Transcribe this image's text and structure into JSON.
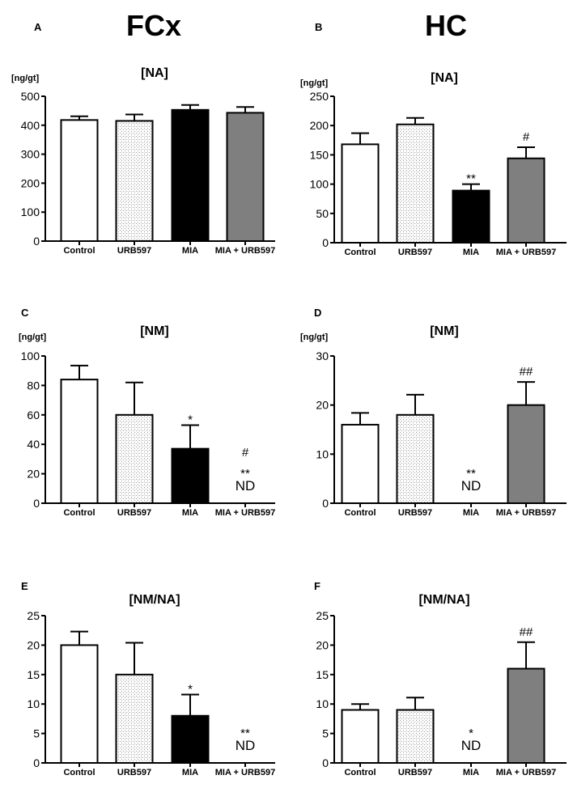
{
  "figure": {
    "col_headers": [
      "FCx",
      "HC"
    ]
  },
  "chart_data": [
    {
      "panel": "A",
      "type": "bar",
      "title": "[NA]",
      "ylabel": "[ng/gt]",
      "ylim": [
        0,
        500
      ],
      "ticks": [
        0,
        100,
        200,
        300,
        400,
        500
      ],
      "categories": [
        "Control",
        "URB597",
        "MIA",
        "MIA + URB597"
      ],
      "values": [
        418,
        415,
        453,
        443
      ],
      "errors": [
        13,
        22,
        17,
        20
      ],
      "annotations": [
        "",
        "",
        "",
        ""
      ],
      "nd": [
        false,
        false,
        false,
        false
      ]
    },
    {
      "panel": "B",
      "type": "bar",
      "title": "[NA]",
      "ylabel": "[ng/gt]",
      "ylim": [
        0,
        250
      ],
      "ticks": [
        0,
        50,
        100,
        150,
        200,
        250
      ],
      "categories": [
        "Control",
        "URB597",
        "MIA",
        "MIA + URB597"
      ],
      "values": [
        168,
        202,
        89,
        144
      ],
      "errors": [
        19,
        11,
        11,
        19
      ],
      "annotations": [
        "",
        "",
        "**",
        "#"
      ],
      "nd": [
        false,
        false,
        false,
        false
      ]
    },
    {
      "panel": "C",
      "type": "bar",
      "title": "[NM]",
      "ylabel": "[ng/gt]",
      "ylim": [
        0,
        100
      ],
      "ticks": [
        0,
        20,
        40,
        60,
        80,
        100
      ],
      "categories": [
        "Control",
        "URB597",
        "MIA",
        "MIA + URB597"
      ],
      "values": [
        84,
        60,
        37,
        0
      ],
      "errors": [
        9.5,
        22,
        16,
        0
      ],
      "annotations": [
        "",
        "",
        "*",
        "#|**"
      ],
      "nd": [
        false,
        false,
        false,
        true
      ]
    },
    {
      "panel": "D",
      "type": "bar",
      "title": "[NM]",
      "ylabel": "[ng/gt]",
      "ylim": [
        0,
        30
      ],
      "ticks": [
        0,
        10,
        20,
        30
      ],
      "categories": [
        "Control",
        "URB597",
        "MIA",
        "MIA + URB597"
      ],
      "values": [
        16,
        18,
        0,
        20
      ],
      "errors": [
        2.4,
        4.1,
        0,
        4.7
      ],
      "annotations": [
        "",
        "",
        "**",
        "##"
      ],
      "nd": [
        false,
        false,
        true,
        false
      ]
    },
    {
      "panel": "E",
      "type": "bar",
      "title": "[NM/NA]",
      "ylabel": "",
      "ylim": [
        0,
        25
      ],
      "ticks": [
        0,
        5,
        10,
        15,
        20,
        25
      ],
      "categories": [
        "Control",
        "URB597",
        "MIA",
        "MIA + URB597"
      ],
      "values": [
        20,
        15,
        8,
        0
      ],
      "errors": [
        2.3,
        5.4,
        3.6,
        0
      ],
      "annotations": [
        "",
        "",
        "*",
        "**"
      ],
      "nd": [
        false,
        false,
        false,
        true
      ]
    },
    {
      "panel": "F",
      "type": "bar",
      "title": "[NM/NA]",
      "ylabel": "",
      "ylim": [
        0,
        25
      ],
      "ticks": [
        0,
        5,
        10,
        15,
        20,
        25
      ],
      "categories": [
        "Control",
        "URB597",
        "MIA",
        "MIA + URB597"
      ],
      "values": [
        9,
        9,
        0,
        16
      ],
      "errors": [
        1,
        2.1,
        0,
        4.5
      ],
      "annotations": [
        "",
        "",
        "*",
        "##"
      ],
      "nd": [
        false,
        false,
        true,
        false
      ]
    }
  ],
  "nd_label": "ND",
  "bar_fills": [
    "#ffffff",
    "url(#stipple)",
    "#000000",
    "#7f7f7f"
  ]
}
